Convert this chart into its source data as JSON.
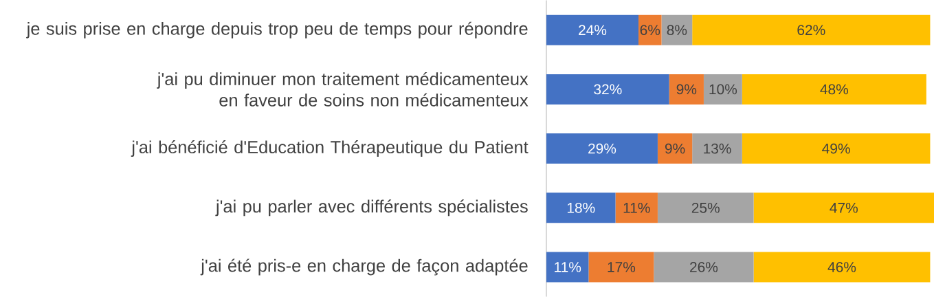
{
  "chart_data": {
    "type": "bar",
    "orientation": "horizontal",
    "stacked": true,
    "categories": [
      "je suis prise en charge depuis trop peu de temps pour répondre",
      "j'ai pu diminuer mon traitement médicamenteux en faveur de soins non médicamenteux",
      "j'ai bénéficié d'Education Thérapeutique du Patient",
      "j'ai pu parler avec différents spécialistes",
      "j'ai été pris-e en charge de façon adaptée"
    ],
    "series": [
      {
        "color": "#4472c4",
        "values": [
          24,
          32,
          29,
          18,
          11
        ],
        "value_labels": [
          "24%",
          "32%",
          "29%",
          "18%",
          "11%"
        ]
      },
      {
        "color": "#ed7d31",
        "values": [
          6,
          9,
          9,
          11,
          17
        ],
        "value_labels": [
          "6%",
          "9%",
          "9%",
          "11%",
          "17%"
        ]
      },
      {
        "color": "#a5a5a5",
        "values": [
          8,
          10,
          13,
          25,
          26
        ],
        "value_labels": [
          "8%",
          "10%",
          "13%",
          "25%",
          "26%"
        ]
      },
      {
        "color": "#ffc000",
        "values": [
          62,
          48,
          49,
          47,
          46
        ],
        "value_labels": [
          "62%",
          "48%",
          "49%",
          "47%",
          "46%"
        ]
      }
    ],
    "xlim": [
      0,
      101
    ],
    "tick_labels": "y"
  }
}
